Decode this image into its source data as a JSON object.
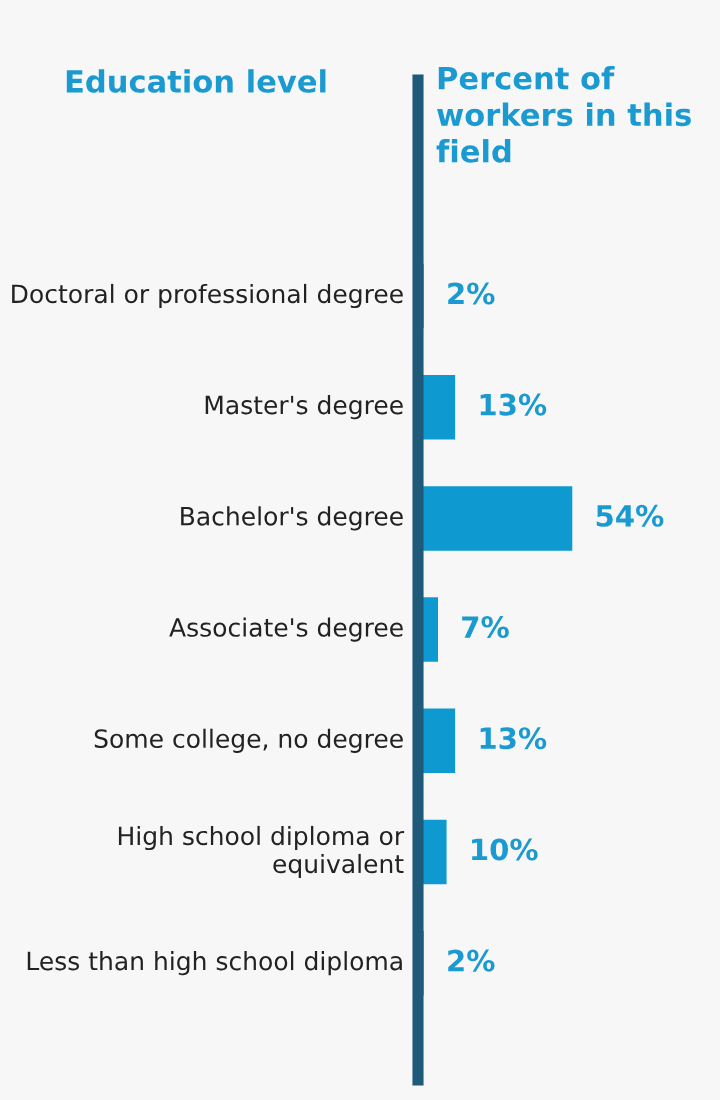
{
  "chart_data": {
    "type": "bar",
    "orientation": "horizontal",
    "ylabel": "Education level",
    "xlabel": "Percent of workers in this field",
    "categories": [
      "Doctoral or professional degree",
      "Master's degree",
      "Bachelor's degree",
      "Associate's degree",
      "Some college, no degree",
      "High school diploma or equivalent",
      "Less than high school diploma"
    ],
    "values": [
      2,
      13,
      54,
      7,
      13,
      10,
      2
    ],
    "value_labels": [
      "2%",
      "13%",
      "54%",
      "7%",
      "13%",
      "10%",
      "2%"
    ],
    "color": "#0e9ad0",
    "xlim": [
      0,
      105
    ]
  }
}
